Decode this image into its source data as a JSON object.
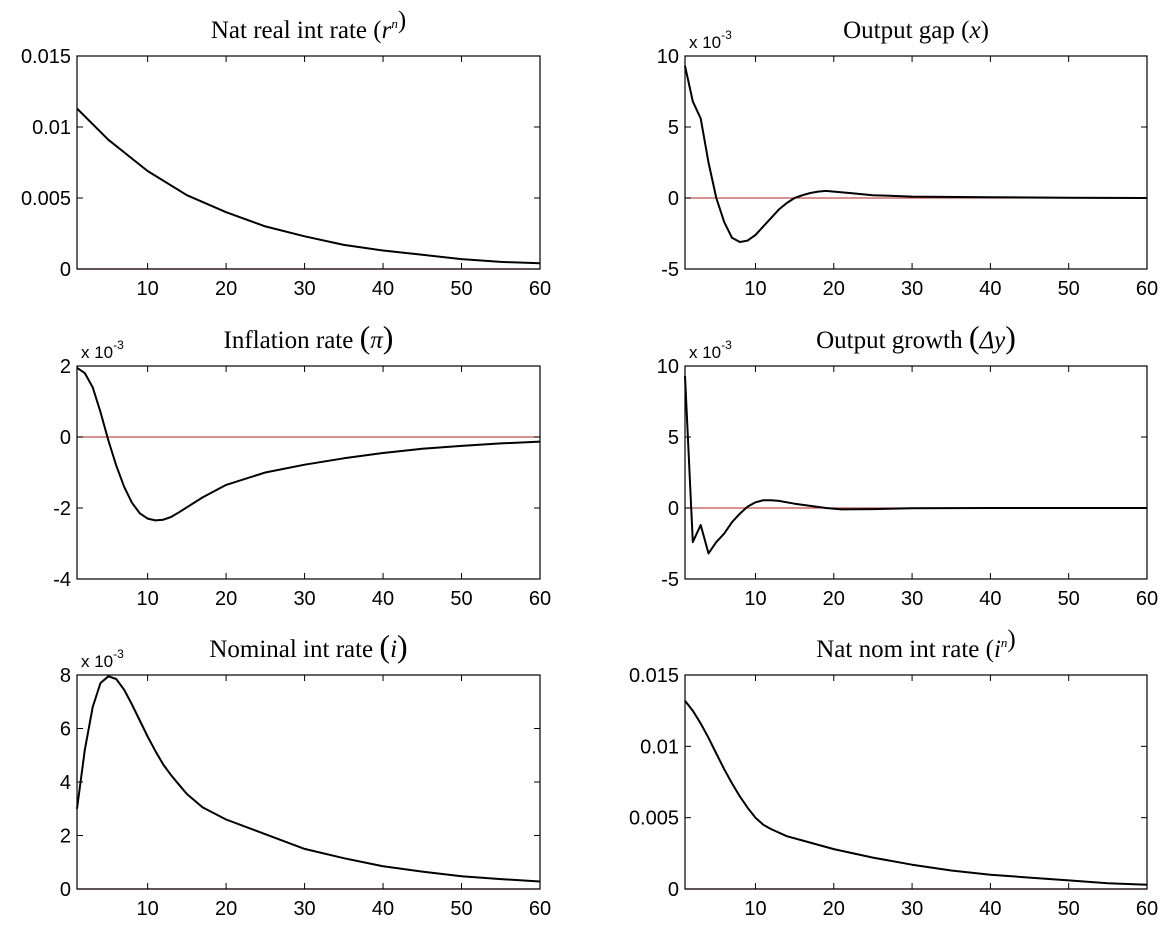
{
  "colors": {
    "series": "#000000",
    "zero_line": "#c0504d",
    "axes": "#000000"
  },
  "chart_data": [
    {
      "id": "nat-real-int-rate",
      "type": "line",
      "title": "Nat real int rate (rⁿ)",
      "title_parts": {
        "main": "Nat real int rate (",
        "var": "r",
        "sup": "n",
        "close": ")"
      },
      "xlim": [
        1,
        60
      ],
      "ylim": [
        0,
        0.015
      ],
      "xticks": [
        10,
        20,
        30,
        40,
        50,
        60
      ],
      "yticks": [
        0,
        0.005,
        0.01,
        0.015
      ],
      "ytick_labels": [
        "0",
        "0.005",
        "0.01",
        "0.015"
      ],
      "exponent_label": "",
      "zero_line": 0,
      "series": [
        {
          "x": [
            1,
            5,
            10,
            15,
            20,
            25,
            30,
            35,
            40,
            45,
            50,
            55,
            60
          ],
          "y": [
            0.0113,
            0.0091,
            0.0069,
            0.0052,
            0.004,
            0.003,
            0.0023,
            0.0017,
            0.0013,
            0.001,
            0.0007,
            0.0005,
            0.0004
          ]
        }
      ]
    },
    {
      "id": "output-gap",
      "type": "line",
      "title": "Output gap (x)",
      "title_parts": {
        "main": "Output gap (",
        "var": "x",
        "sup": "",
        "close": ")"
      },
      "xlim": [
        1,
        60
      ],
      "ylim": [
        -5,
        10
      ],
      "xticks": [
        10,
        20,
        30,
        40,
        50,
        60
      ],
      "yticks": [
        -5,
        0,
        5,
        10
      ],
      "ytick_labels": [
        "-5",
        "0",
        "5",
        "10"
      ],
      "exponent_label": "x 10",
      "exponent_power": "-3",
      "zero_line": 0,
      "series": [
        {
          "x": [
            1,
            2,
            3,
            4,
            5,
            6,
            7,
            8,
            9,
            10,
            11,
            12,
            13,
            14,
            15,
            16,
            17,
            18,
            19,
            20,
            22,
            25,
            30,
            40,
            50,
            60
          ],
          "y": [
            9.3,
            6.8,
            5.6,
            2.5,
            0.0,
            -1.7,
            -2.8,
            -3.1,
            -3.0,
            -2.6,
            -2.0,
            -1.4,
            -0.8,
            -0.35,
            0.0,
            0.2,
            0.35,
            0.45,
            0.5,
            0.45,
            0.35,
            0.2,
            0.1,
            0.05,
            0.02,
            0.0
          ]
        }
      ]
    },
    {
      "id": "inflation-rate",
      "type": "line",
      "title": "Inflation rate (π)",
      "title_parts": {
        "main": "Inflation rate ",
        "var": "π",
        "sup": "",
        "close": ""
      },
      "xlim": [
        1,
        60
      ],
      "ylim": [
        -4,
        2
      ],
      "xticks": [
        10,
        20,
        30,
        40,
        50,
        60
      ],
      "yticks": [
        -4,
        -2,
        0,
        2
      ],
      "ytick_labels": [
        "-4",
        "-2",
        "0",
        "2"
      ],
      "exponent_label": "x 10",
      "exponent_power": "-3",
      "zero_line": 0,
      "series": [
        {
          "x": [
            1,
            2,
            3,
            4,
            5,
            6,
            7,
            8,
            9,
            10,
            11,
            12,
            13,
            14,
            15,
            17,
            20,
            25,
            30,
            35,
            40,
            45,
            50,
            55,
            60
          ],
          "y": [
            1.95,
            1.8,
            1.4,
            0.7,
            -0.1,
            -0.8,
            -1.4,
            -1.85,
            -2.15,
            -2.3,
            -2.35,
            -2.33,
            -2.25,
            -2.12,
            -1.98,
            -1.7,
            -1.35,
            -1.0,
            -0.78,
            -0.6,
            -0.45,
            -0.33,
            -0.25,
            -0.18,
            -0.13
          ]
        }
      ]
    },
    {
      "id": "output-growth",
      "type": "line",
      "title": "Output growth (Δy)",
      "title_parts": {
        "main": "Output growth ",
        "var": "Δy",
        "sup": "",
        "close": ""
      },
      "xlim": [
        1,
        60
      ],
      "ylim": [
        -5,
        10
      ],
      "xticks": [
        10,
        20,
        30,
        40,
        50,
        60
      ],
      "yticks": [
        -5,
        0,
        5,
        10
      ],
      "ytick_labels": [
        "-5",
        "0",
        "5",
        "10"
      ],
      "exponent_label": "x 10",
      "exponent_power": "-3",
      "zero_line": 0,
      "series": [
        {
          "x": [
            1,
            2,
            3,
            4,
            5,
            6,
            7,
            8,
            9,
            10,
            11,
            12,
            13,
            14,
            15,
            17,
            19,
            21,
            25,
            30,
            40,
            60
          ],
          "y": [
            9.3,
            -2.4,
            -1.2,
            -3.2,
            -2.4,
            -1.8,
            -1.0,
            -0.4,
            0.1,
            0.4,
            0.55,
            0.55,
            0.5,
            0.4,
            0.3,
            0.15,
            0.0,
            -0.1,
            -0.08,
            -0.02,
            0.0,
            0.0
          ]
        }
      ]
    },
    {
      "id": "nominal-int-rate",
      "type": "line",
      "title": "Nominal int rate (i)",
      "title_parts": {
        "main": "Nominal int rate ",
        "var": "i",
        "sup": "",
        "close": ""
      },
      "xlim": [
        1,
        60
      ],
      "ylim": [
        0,
        8
      ],
      "xticks": [
        10,
        20,
        30,
        40,
        50,
        60
      ],
      "yticks": [
        0,
        2,
        4,
        6,
        8
      ],
      "ytick_labels": [
        "0",
        "2",
        "4",
        "6",
        "8"
      ],
      "exponent_label": "x 10",
      "exponent_power": "-3",
      "zero_line": 0,
      "series": [
        {
          "x": [
            1,
            2,
            3,
            4,
            5,
            6,
            7,
            8,
            9,
            10,
            11,
            12,
            13,
            14,
            15,
            17,
            20,
            25,
            30,
            35,
            40,
            45,
            50,
            55,
            60
          ],
          "y": [
            3.0,
            5.2,
            6.8,
            7.7,
            7.95,
            7.85,
            7.45,
            6.9,
            6.3,
            5.7,
            5.15,
            4.65,
            4.25,
            3.9,
            3.55,
            3.05,
            2.6,
            2.05,
            1.5,
            1.15,
            0.85,
            0.65,
            0.48,
            0.37,
            0.28
          ]
        }
      ]
    },
    {
      "id": "nat-nom-int-rate",
      "type": "line",
      "title": "Nat nom int rate (iⁿ)",
      "title_parts": {
        "main": "Nat nom int rate (",
        "var": "i",
        "sup": "n",
        "close": ")"
      },
      "xlim": [
        1,
        60
      ],
      "ylim": [
        0,
        0.015
      ],
      "xticks": [
        10,
        20,
        30,
        40,
        50,
        60
      ],
      "yticks": [
        0,
        0.005,
        0.01,
        0.015
      ],
      "ytick_labels": [
        "0",
        "0.005",
        "0.01",
        "0.015"
      ],
      "exponent_label": "",
      "zero_line": 0,
      "series": [
        {
          "x": [
            1,
            2,
            3,
            4,
            5,
            6,
            7,
            8,
            9,
            10,
            11,
            12,
            14,
            16,
            20,
            25,
            30,
            35,
            40,
            45,
            50,
            55,
            60
          ],
          "y": [
            0.0132,
            0.0125,
            0.0116,
            0.0106,
            0.0095,
            0.0084,
            0.0074,
            0.0065,
            0.0057,
            0.005,
            0.0045,
            0.0042,
            0.0037,
            0.0034,
            0.0028,
            0.0022,
            0.0017,
            0.0013,
            0.001,
            0.0008,
            0.0006,
            0.0004,
            0.0003
          ]
        }
      ]
    }
  ]
}
